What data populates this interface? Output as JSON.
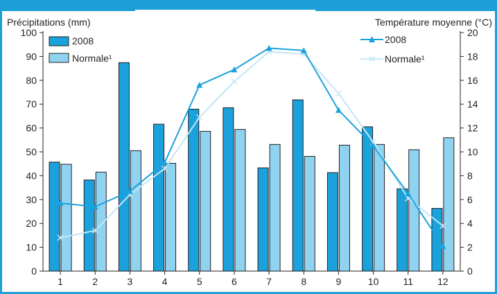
{
  "chart_data": {
    "type": "bar",
    "categories": [
      "1",
      "2",
      "3",
      "4",
      "5",
      "6",
      "7",
      "8",
      "9",
      "10",
      "11",
      "12"
    ],
    "left_axis": {
      "label": "Précipitations (mm)",
      "ticks": [
        "0",
        "10",
        "20",
        "30",
        "40",
        "50",
        "60",
        "70",
        "80",
        "90",
        "100"
      ],
      "ylim": [
        0,
        100
      ]
    },
    "right_axis": {
      "label": "Température moyenne (°C)",
      "ticks": [
        "0",
        "2",
        "4",
        "6",
        "8",
        "10",
        "12",
        "14",
        "16",
        "18",
        "20"
      ],
      "ylim": [
        0,
        20
      ]
    },
    "bar_series": [
      {
        "name": "2008",
        "color": "#1ba2dc",
        "values": [
          45.7,
          38.2,
          87.4,
          61.6,
          67.9,
          68.5,
          43.3,
          71.8,
          41.3,
          60.5,
          34.5,
          26.3
        ]
      },
      {
        "name": "Normale¹",
        "color": "#8fd3f1",
        "values": [
          44.8,
          41.5,
          50.5,
          45.2,
          58.6,
          59.4,
          53.1,
          48.1,
          52.8,
          53.1,
          50.9,
          55.9
        ]
      }
    ],
    "line_series": [
      {
        "name": "2008",
        "color": "#1ba2dc",
        "marker": "triangle",
        "values": [
          5.7,
          5.4,
          6.7,
          9.1,
          15.6,
          16.9,
          18.7,
          18.5,
          13.5,
          10.5,
          6.5,
          2.1
        ]
      },
      {
        "name": "Normale¹",
        "color": "#c3e6f5",
        "marker": "x",
        "values": [
          2.8,
          3.4,
          6.4,
          8.6,
          12.9,
          15.9,
          18.4,
          18.2,
          14.9,
          10.8,
          6.1,
          3.8
        ]
      }
    ],
    "legend": {
      "bars_position": "top-left",
      "lines_position": "top-right"
    },
    "grid": false
  }
}
